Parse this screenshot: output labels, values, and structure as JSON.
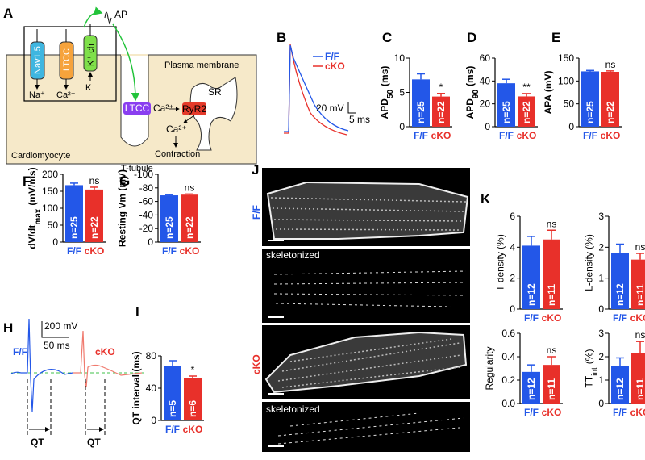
{
  "panel_letters": [
    "A",
    "B",
    "C",
    "D",
    "E",
    "F",
    "G",
    "H",
    "I",
    "J",
    "K"
  ],
  "diagram": {
    "ap": "AP",
    "channels": [
      "Nav1.5",
      "LTCC",
      "K⁺ ch"
    ],
    "ions": [
      "Na⁺",
      "Ca²⁺",
      "K⁺"
    ],
    "membrane": "Plasma membrane",
    "ltcc": "LTCC",
    "ca_small": "Ca²⁺",
    "ryr2": "RyR2",
    "sr": "SR",
    "ca": "Ca²⁺",
    "contraction": "Contraction",
    "ttubule": "T-tubule",
    "cell": "Cardiomyocyte"
  },
  "trace_b": {
    "legend": [
      "F/F",
      "cKO"
    ],
    "scale_v": "20 mV",
    "scale_t": "5 ms"
  },
  "trace_h": {
    "labels": [
      "F/F",
      "cKO"
    ],
    "scale_v": "200 mV",
    "scale_t": "50 ms",
    "interval": [
      "QT",
      "QT"
    ]
  },
  "images": {
    "rows": [
      "F/F",
      "cKO"
    ],
    "captions": [
      "skeletonized",
      "skeletonized"
    ]
  },
  "chart_data": [
    {
      "type": "bar",
      "ylabel": "APD",
      "ylabel_sub": "50",
      "ylabel_unit": "(ms)",
      "categories": [
        "F/F",
        "cKO"
      ],
      "colors": [
        "#2357e8",
        "#e8302a"
      ],
      "values": [
        6.9,
        4.4
      ],
      "errors": [
        0.8,
        0.45
      ],
      "n_labels": [
        "n=25",
        "n=22"
      ],
      "significance": [
        null,
        "*"
      ],
      "ylim": [
        0,
        10
      ],
      "yticks": [
        0,
        5,
        10
      ]
    },
    {
      "type": "bar",
      "ylabel": "APD",
      "ylabel_sub": "90",
      "ylabel_unit": "(ms)",
      "categories": [
        "F/F",
        "cKO"
      ],
      "colors": [
        "#2357e8",
        "#e8302a"
      ],
      "values": [
        38,
        26.5
      ],
      "errors": [
        3.5,
        2.5
      ],
      "n_labels": [
        "n=25",
        "n=22"
      ],
      "significance": [
        null,
        "**"
      ],
      "ylim": [
        0,
        60
      ],
      "yticks": [
        0,
        20,
        40,
        60
      ]
    },
    {
      "type": "bar",
      "ylabel": "APA (mV)",
      "categories": [
        "F/F",
        "cKO"
      ],
      "colors": [
        "#2357e8",
        "#e8302a"
      ],
      "values": [
        121,
        120
      ],
      "errors": [
        2,
        2
      ],
      "n_labels": [
        "n=25",
        "n=22"
      ],
      "significance": [
        null,
        "ns"
      ],
      "ylim": [
        0,
        150
      ],
      "yticks": [
        0,
        50,
        100,
        150
      ]
    },
    {
      "type": "bar",
      "ylabel": "dV/dt",
      "ylabel_sub": "max",
      "ylabel_unit": "(mV/ms)",
      "categories": [
        "F/F",
        "cKO"
      ],
      "colors": [
        "#2357e8",
        "#e8302a"
      ],
      "values": [
        168,
        155
      ],
      "errors": [
        6,
        7
      ],
      "n_labels": [
        "n=25",
        "n=22"
      ],
      "significance": [
        null,
        "ns"
      ],
      "ylim": [
        0,
        200
      ],
      "yticks": [
        0,
        50,
        100,
        150,
        200
      ]
    },
    {
      "type": "bar",
      "ylabel": "Resting Vm (mV)",
      "categories": [
        "F/F",
        "cKO"
      ],
      "colors": [
        "#2357e8",
        "#e8302a"
      ],
      "values": [
        -69,
        -70
      ],
      "errors": [
        1,
        1
      ],
      "n_labels": [
        "n=25",
        "n=22"
      ],
      "significance": [
        null,
        "ns"
      ],
      "ylim": [
        0,
        -100
      ],
      "yticks": [
        0,
        -20,
        -40,
        -60,
        -80,
        -100
      ]
    },
    {
      "type": "bar",
      "ylabel": "QT interval (ms)",
      "categories": [
        "F/F",
        "cKO"
      ],
      "colors": [
        "#2357e8",
        "#e8302a"
      ],
      "values": [
        68,
        52
      ],
      "errors": [
        6,
        3
      ],
      "n_labels": [
        "n=5",
        "n=6"
      ],
      "significance": [
        null,
        "*"
      ],
      "ylim": [
        0,
        80
      ],
      "yticks": [
        0,
        40,
        80
      ]
    },
    {
      "type": "bar",
      "ylabel": "T-density (%)",
      "categories": [
        "F/F",
        "cKO"
      ],
      "colors": [
        "#2357e8",
        "#e8302a"
      ],
      "values": [
        4.1,
        4.5
      ],
      "errors": [
        0.6,
        0.6
      ],
      "n_labels": [
        "n=12",
        "n=11"
      ],
      "significance": [
        null,
        "ns"
      ],
      "ylim": [
        0,
        6
      ],
      "yticks": [
        0,
        2,
        4,
        6
      ]
    },
    {
      "type": "bar",
      "ylabel": "L-density (%)",
      "categories": [
        "F/F",
        "cKO"
      ],
      "colors": [
        "#2357e8",
        "#e8302a"
      ],
      "values": [
        1.8,
        1.6
      ],
      "errors": [
        0.3,
        0.2
      ],
      "n_labels": [
        "n=12",
        "n=11"
      ],
      "significance": [
        null,
        "ns"
      ],
      "ylim": [
        0,
        3
      ],
      "yticks": [
        0,
        1,
        2,
        3
      ]
    },
    {
      "type": "bar",
      "ylabel": "Regularity",
      "categories": [
        "F/F",
        "cKO"
      ],
      "colors": [
        "#2357e8",
        "#e8302a"
      ],
      "values": [
        0.27,
        0.33
      ],
      "errors": [
        0.06,
        0.07
      ],
      "n_labels": [
        "n=12",
        "n=11"
      ],
      "significance": [
        null,
        "ns"
      ],
      "ylim": [
        0,
        0.6
      ],
      "yticks": [
        {
          "value": 0,
          "label": "0.0"
        },
        0.2,
        0.4,
        0.6
      ]
    },
    {
      "type": "bar",
      "ylabel": "TT",
      "ylabel_sub": "int",
      "ylabel_unit": "(%)",
      "categories": [
        "F/F",
        "cKO"
      ],
      "colors": [
        "#2357e8",
        "#e8302a"
      ],
      "values": [
        1.6,
        2.15
      ],
      "errors": [
        0.35,
        0.5
      ],
      "n_labels": [
        "n=12",
        "n=11"
      ],
      "significance": [
        null,
        "ns"
      ],
      "ylim": [
        0,
        3
      ],
      "yticks": [
        0,
        1,
        2,
        3
      ]
    }
  ]
}
